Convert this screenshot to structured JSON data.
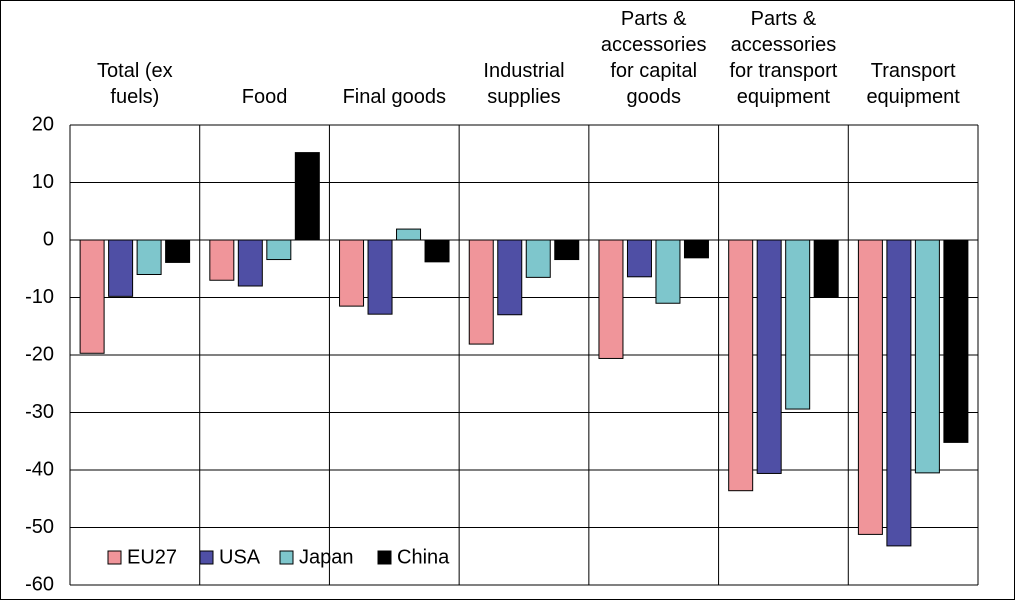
{
  "chart_data": {
    "type": "bar",
    "categories": [
      "Total (ex fuels)",
      "Food",
      "Final goods",
      "Industrial supplies",
      "Parts & accessories for capital goods",
      "Parts & accessories for transport equipment",
      "Transport equipment"
    ],
    "series": [
      {
        "name": "EU27",
        "color": "#f0959a",
        "values": [
          -19.7,
          -7,
          -11.5,
          -18.1,
          -20.6,
          -43.6,
          -51.2
        ]
      },
      {
        "name": "USA",
        "color": "#4f4fa5",
        "values": [
          -9.8,
          -8,
          -12.9,
          -13,
          -6.4,
          -40.6,
          -53.2
        ]
      },
      {
        "name": "Japan",
        "color": "#7ec6cc",
        "values": [
          -6,
          -3.4,
          1.9,
          -6.5,
          -11,
          -29.4,
          -40.5
        ]
      },
      {
        "name": "China",
        "color": "#000000",
        "values": [
          -3.9,
          15.2,
          -3.8,
          -3.4,
          -3.1,
          -10,
          -35.2
        ]
      }
    ],
    "ylim": [
      -60,
      20
    ],
    "yticks": [
      -60,
      -50,
      -40,
      -30,
      -20,
      -10,
      0,
      10,
      20
    ],
    "grid": true,
    "legend": "lower left"
  }
}
